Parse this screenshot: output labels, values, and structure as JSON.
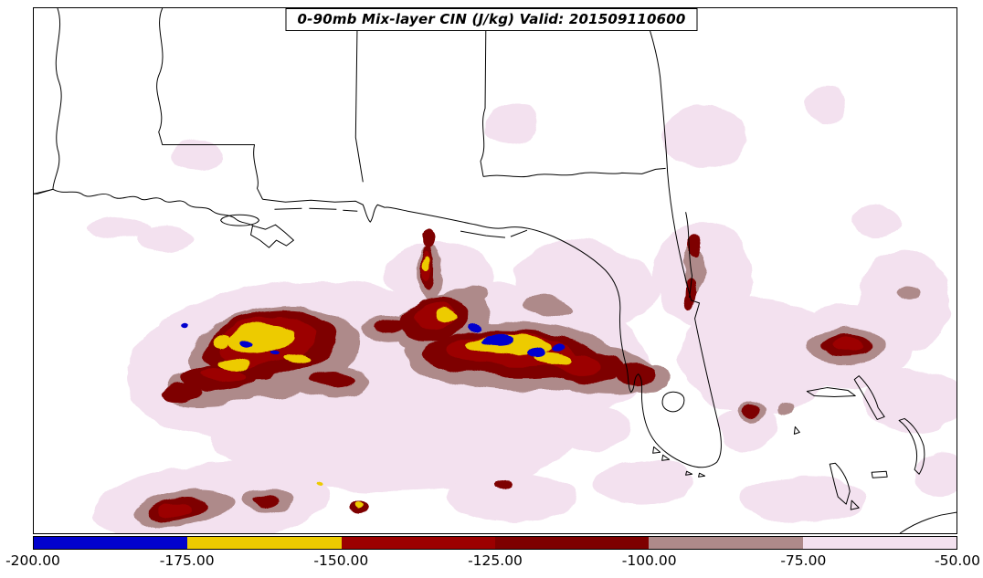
{
  "title": "0-90mb Mix-layer CIN (J/kg) Valid: 201509110600",
  "colorbar": {
    "tick_labels": [
      "-200.00",
      "-175.00",
      "-150.00",
      "-125.00",
      "-100.00",
      "-75.00",
      "-50.00"
    ],
    "segment_colors": [
      "#0202CE",
      "#EDCB00",
      "#9C0000",
      "#7E0000",
      "#AE8A8A",
      "#F3E1EF"
    ],
    "range_min": -200.0,
    "range_max": -50.0,
    "interval": 25.0,
    "units": "J/kg"
  },
  "map": {
    "background_color": "#FFFFFF",
    "boundary_color": "#000000",
    "levels": [
      {
        "name": "cin-200-175",
        "color": "#0202CE"
      },
      {
        "name": "cin-175-150",
        "color": "#EDCB00"
      },
      {
        "name": "cin-150-125",
        "color": "#9C0000"
      },
      {
        "name": "cin-125-100",
        "color": "#7E0000"
      },
      {
        "name": "cin-100-75",
        "color": "#AE8A8A"
      },
      {
        "name": "cin-75-50",
        "color": "#F3E1EF"
      }
    ],
    "blobs": [
      [
        5,
        310,
        395,
        175,
        85,
        -8
      ],
      [
        5,
        545,
        390,
        165,
        80,
        3
      ],
      [
        5,
        430,
        478,
        200,
        62,
        0
      ],
      [
        5,
        640,
        310,
        80,
        45,
        10
      ],
      [
        5,
        480,
        300,
        60,
        35,
        0
      ],
      [
        5,
        230,
        553,
        130,
        45,
        -5
      ],
      [
        5,
        560,
        545,
        70,
        28,
        0
      ],
      [
        5,
        705,
        528,
        55,
        25,
        0
      ],
      [
        5,
        770,
        300,
        55,
        55,
        0
      ],
      [
        5,
        830,
        390,
        85,
        65,
        0
      ],
      [
        5,
        930,
        380,
        70,
        45,
        0
      ],
      [
        5,
        990,
        330,
        50,
        55,
        0
      ],
      [
        5,
        1000,
        440,
        55,
        35,
        0
      ],
      [
        5,
        880,
        548,
        70,
        25,
        0
      ],
      [
        5,
        770,
        150,
        45,
        35,
        0
      ],
      [
        5,
        560,
        135,
        30,
        22,
        0
      ],
      [
        5,
        905,
        115,
        25,
        18,
        0
      ],
      [
        5,
        215,
        170,
        28,
        16,
        0
      ],
      [
        5,
        130,
        250,
        35,
        12,
        0
      ],
      [
        5,
        960,
        240,
        25,
        18,
        0
      ],
      [
        5,
        1030,
        520,
        30,
        25,
        0
      ],
      [
        5,
        820,
        470,
        35,
        22,
        0
      ],
      [
        5,
        650,
        470,
        40,
        25,
        0
      ],
      [
        5,
        180,
        262,
        30,
        14,
        0
      ],
      [
        4,
        300,
        385,
        95,
        48,
        -8
      ],
      [
        4,
        235,
        425,
        55,
        20,
        -5
      ],
      [
        4,
        365,
        420,
        40,
        18,
        0
      ],
      [
        4,
        560,
        390,
        115,
        38,
        2
      ],
      [
        4,
        485,
        355,
        55,
        30,
        -10
      ],
      [
        4,
        660,
        405,
        55,
        26,
        5
      ],
      [
        4,
        710,
        415,
        25,
        16,
        0
      ],
      [
        4,
        470,
        300,
        14,
        32,
        0
      ],
      [
        4,
        505,
        330,
        28,
        14,
        -20
      ],
      [
        4,
        928,
        380,
        42,
        20,
        0
      ],
      [
        4,
        760,
        295,
        13,
        26,
        0
      ],
      [
        4,
        822,
        452,
        14,
        13,
        0
      ],
      [
        4,
        858,
        448,
        10,
        8,
        0
      ],
      [
        4,
        200,
        558,
        55,
        20,
        -8
      ],
      [
        4,
        290,
        548,
        28,
        13,
        0
      ],
      [
        4,
        425,
        360,
        30,
        16,
        0
      ],
      [
        4,
        600,
        335,
        25,
        10,
        15
      ],
      [
        4,
        995,
        320,
        12,
        8,
        0
      ],
      [
        3,
        295,
        378,
        75,
        36,
        -8
      ],
      [
        3,
        240,
        415,
        42,
        14,
        -5
      ],
      [
        3,
        198,
        432,
        22,
        9,
        0
      ],
      [
        3,
        560,
        388,
        95,
        26,
        2
      ],
      [
        3,
        475,
        350,
        38,
        22,
        -10
      ],
      [
        3,
        640,
        400,
        42,
        16,
        5
      ],
      [
        3,
        695,
        410,
        20,
        12,
        0
      ],
      [
        3,
        467,
        295,
        7,
        26,
        0
      ],
      [
        3,
        470,
        262,
        7,
        10,
        0
      ],
      [
        3,
        927,
        379,
        26,
        12,
        0
      ],
      [
        3,
        757,
        320,
        7,
        16,
        0
      ],
      [
        3,
        762,
        270,
        7,
        11,
        0
      ],
      [
        3,
        821,
        452,
        9,
        9,
        0
      ],
      [
        3,
        192,
        560,
        32,
        12,
        -8
      ],
      [
        3,
        288,
        548,
        14,
        7,
        0
      ],
      [
        3,
        392,
        556,
        11,
        7,
        0
      ],
      [
        3,
        552,
        532,
        9,
        6,
        0
      ],
      [
        3,
        365,
        418,
        25,
        9,
        0
      ],
      [
        3,
        425,
        358,
        18,
        9,
        0
      ],
      [
        2,
        290,
        374,
        55,
        26,
        -8
      ],
      [
        2,
        560,
        384,
        70,
        18,
        2
      ],
      [
        2,
        475,
        347,
        25,
        14,
        -10
      ],
      [
        2,
        630,
        397,
        28,
        10,
        5
      ],
      [
        2,
        245,
        412,
        25,
        8,
        0
      ],
      [
        2,
        927,
        378,
        16,
        7,
        0
      ],
      [
        2,
        466,
        292,
        5,
        16,
        0
      ],
      [
        2,
        190,
        560,
        18,
        7,
        0
      ],
      [
        1,
        285,
        370,
        38,
        16,
        -8
      ],
      [
        1,
        255,
        398,
        18,
        7,
        0
      ],
      [
        1,
        325,
        392,
        14,
        6,
        0
      ],
      [
        1,
        558,
        378,
        48,
        11,
        2
      ],
      [
        1,
        605,
        392,
        20,
        7,
        5
      ],
      [
        1,
        487,
        345,
        13,
        8,
        0
      ],
      [
        1,
        466,
        290,
        4,
        8,
        0
      ],
      [
        1,
        392,
        554,
        5,
        4,
        0
      ],
      [
        1,
        350,
        532,
        4,
        3,
        0
      ],
      [
        1,
        240,
        372,
        10,
        5,
        0
      ],
      [
        0,
        545,
        372,
        16,
        6,
        0
      ],
      [
        0,
        588,
        386,
        11,
        5,
        0
      ],
      [
        0,
        614,
        380,
        7,
        4,
        0
      ],
      [
        0,
        522,
        358,
        9,
        4,
        0
      ],
      [
        0,
        268,
        376,
        7,
        4,
        0
      ],
      [
        0,
        302,
        386,
        5,
        3,
        0
      ],
      [
        0,
        203,
        357,
        4,
        3,
        0
      ]
    ],
    "boundaries": [
      "M 62 8 C 71 34 53 62 64 90 C 72 112 55 142 63 166 C 67 182 57 196 57 207 L 40 212 L 36 212",
      "M 36 212 L 57 207 C 70 214 80 206 90 213 C 100 219 110 207 122 215 C 132 221 142 211 152 217 C 160 222 168 212 178 219 C 186 225 196 215 204 223 C 212 230 224 224 232 231 C 240 237 250 233 258 240 C 264 245 272 243 278 248",
      "M 276 247 L 290 251 L 301 246 L 311 254 L 321 263 L 313 269 L 302 263 L 294 271 L 284 263 L 274 257 Z",
      "M 241 241 C 244 233 280 233 283 241 C 280 249 244 249 241 241 Z",
      "M 177 8 C 167 30 185 56 173 82 C 165 102 183 122 173 144 L 177 158 L 278 158 C 274 176 285 196 281 206 L 287 218",
      "M 287 218 L 312 221 L 340 219 L 366 221 L 389 220 L 397 224 C 400 231 401 239 405 243 C 409 238 408 229 413 224 L 421 227",
      "M 300 229 L 330 228 M 338 228 L 368 229 M 375 230 L 391 231",
      "M 704 8 C 712 32 720 58 723 84 C 726 118 729 152 731 188 C 734 226 741 266 751 306 L 757 329 L 766 332 L 761 349 C 769 390 779 432 788 470 C 791 486 791 499 785 507 C 776 514 764 514 752 509 C 737 503 723 493 715 481 C 707 469 704 454 703 440 C 702 428 705 416 699 410 C 693 414 696 426 691 430 C 687 424 689 410 685 398 C 680 379 678 359 679 341 C 680 324 675 309 663 296 C 649 282 628 269 606 259 C 587 251 569 247 556 249 C 539 252 528 247 516 245 C 493 240 468 235 446 231 C 432 228 424 226 421 227",
      "M 504 253 L 532 258 L 553 260 M 559 259 L 577 252",
      "M 391 8 L 389 150 L 397 199",
      "M 532 8 L 531 118 C 524 138 535 158 526 176 L 529 193",
      "M 529 193 C 550 189 566 196 582 192 C 601 188 616 194 633 190 C 651 186 666 192 681 189 L 703 190 L 718 185 L 729 184",
      "M 751 232 C 756 254 753 278 758 302 L 755 326",
      "M 726 437 C 728 428 745 427 749 436 C 751 445 743 453 734 451 C 727 449 724 444 726 437 Z",
      "M 716 490 L 723 496 L 715 497 Z M 726 499 L 733 504 L 725 505 Z",
      "M 752 517 L 758 520 L 751 521 Z M 766 519 L 772 522 L 765 523 Z",
      "M 884 429 L 906 425 L 929 428 L 937 434 L 914 435 L 892 434 Z",
      "M 941 412 C 950 421 958 433 962 447 L 969 457 L 961 460 L 953 446 C 947 434 940 423 936 416 Z",
      "M 915 508 C 923 516 929 527 931 539 L 927 553 L 918 545 C 914 531 911 517 909 509 Z M 933 549 L 941 557 L 932 559 Z",
      "M 955 518 L 971 517 L 972 523 L 956 524 Z",
      "M 991 459 C 1000 465 1008 476 1012 489 C 1014 501 1012 512 1007 520 L 1002 515 C 1006 503 1005 490 999 478 C 995 470 989 464 985 461 Z",
      "M 871 468 L 876 474 L 870 476 Z",
      "M 986 585 C 999 576 1015 569 1031 565 L 1048 562"
    ]
  }
}
